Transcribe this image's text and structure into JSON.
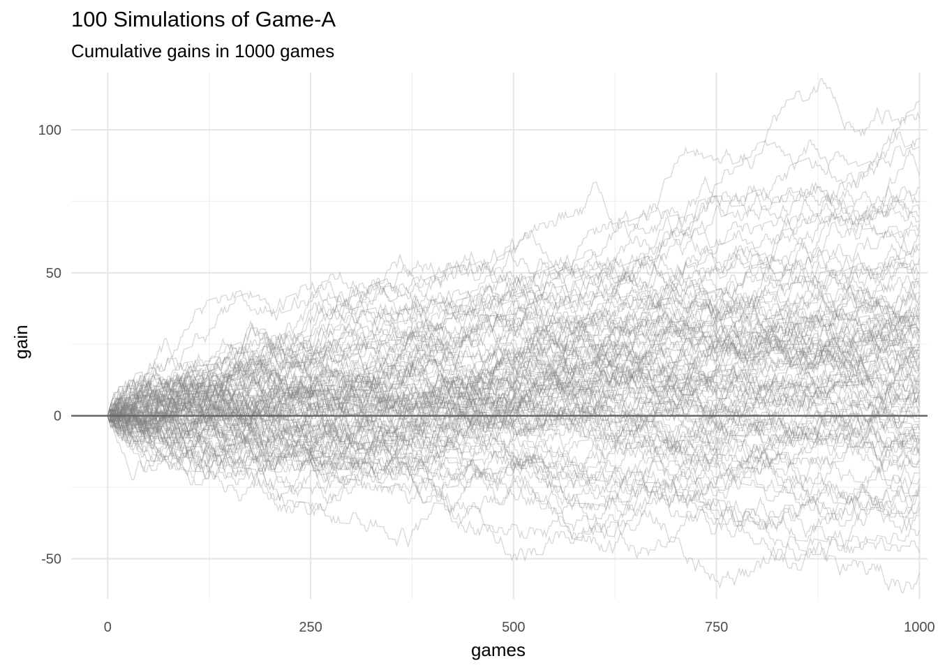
{
  "chart_data": {
    "type": "line",
    "title": "100 Simulations of Game-A",
    "subtitle": "Cumulative gains in 1000 games",
    "xlabel": "games",
    "ylabel": "gain",
    "xlim": [
      -45,
      1010
    ],
    "ylim": [
      -64,
      120
    ],
    "x_ticks": [
      0,
      250,
      500,
      750,
      1000
    ],
    "x_tick_labels": [
      "0",
      "250",
      "500",
      "750",
      "1000"
    ],
    "y_ticks": [
      -50,
      0,
      50,
      100
    ],
    "y_tick_labels": [
      "-50",
      "0",
      "50",
      "100"
    ],
    "grid": true,
    "reference_line": {
      "y": 0,
      "color": "#666666"
    },
    "n_series": 100,
    "n_games": 1000,
    "line_color": "#808080",
    "line_opacity": 0.35,
    "series_endpoints": [
      110,
      104,
      97,
      94,
      84,
      80,
      75,
      72,
      70,
      68,
      67,
      65,
      63,
      60,
      58,
      55,
      53,
      50,
      50,
      48,
      47,
      45,
      43,
      42,
      40,
      39,
      38,
      37,
      36,
      35,
      34,
      33,
      32,
      31,
      30,
      30,
      29,
      28,
      28,
      27,
      26,
      25,
      25,
      24,
      23,
      23,
      22,
      21,
      20,
      20,
      19,
      18,
      17,
      16,
      15,
      14,
      13,
      12,
      11,
      10,
      9,
      8,
      8,
      7,
      6,
      5,
      4,
      3,
      2,
      1,
      0,
      -1,
      -2,
      -3,
      -4,
      -5,
      -6,
      -7,
      -8,
      -9,
      -10,
      -11,
      -12,
      -13,
      -14,
      -15,
      -16,
      -18,
      -20,
      -22,
      -24,
      -25,
      -26,
      -28,
      -30,
      -32,
      -35,
      -40,
      -48,
      -55
    ]
  }
}
